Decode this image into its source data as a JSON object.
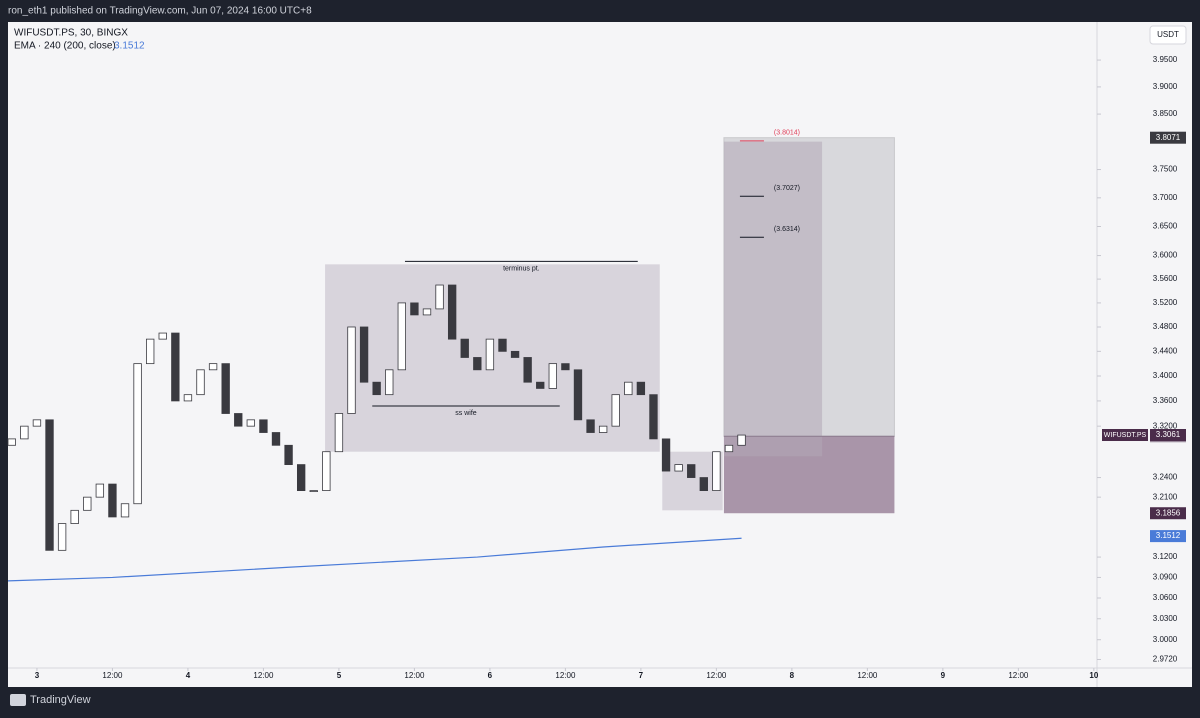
{
  "header": {
    "title": "ron_eth1 published on TradingView.com, Jun 07, 2024 16:00 UTC+8"
  },
  "footer": {
    "brand": "TradingView"
  },
  "chart_data": {
    "type": "candlestick",
    "symbol": "WIFUSDT.PS, 30, BINGX",
    "indicator": {
      "name": "EMA · 240 (200, close)",
      "value": 3.1512,
      "color": "#4a7bd8",
      "x": [
        -4.6,
        12,
        40,
        70,
        90,
        112
      ],
      "values": [
        3.085,
        3.09,
        3.105,
        3.12,
        3.135,
        3.148
      ]
    },
    "currency": "USDT",
    "log_scale": true,
    "xlim": [
      -4.6,
      168.5
    ],
    "ylim": [
      2.96,
      4.022
    ],
    "xticks": [
      {
        "value": 0,
        "label": "3"
      },
      {
        "value": 12,
        "label": "12:00"
      },
      {
        "value": 24,
        "label": "4"
      },
      {
        "value": 36,
        "label": "12:00"
      },
      {
        "value": 48,
        "label": "5"
      },
      {
        "value": 60,
        "label": "12:00"
      },
      {
        "value": 72,
        "label": "6"
      },
      {
        "value": 84,
        "label": "12:00"
      },
      {
        "value": 96,
        "label": "7"
      },
      {
        "value": 108,
        "label": "12:00"
      },
      {
        "value": 120,
        "label": "8"
      },
      {
        "value": 132,
        "label": "12:00"
      },
      {
        "value": 144,
        "label": "9"
      },
      {
        "value": 156,
        "label": "12:00"
      },
      {
        "value": 168,
        "label": "10"
      }
    ],
    "yticks": [
      {
        "value": 3.95,
        "label": "3.9500"
      },
      {
        "value": 3.9,
        "label": "3.9000"
      },
      {
        "value": 3.85,
        "label": "3.8500"
      },
      {
        "value": 3.75,
        "label": "3.7500"
      },
      {
        "value": 3.7,
        "label": "3.7000"
      },
      {
        "value": 3.65,
        "label": "3.6500"
      },
      {
        "value": 3.6,
        "label": "3.6000"
      },
      {
        "value": 3.56,
        "label": "3.5600"
      },
      {
        "value": 3.52,
        "label": "3.5200"
      },
      {
        "value": 3.48,
        "label": "3.4800"
      },
      {
        "value": 3.44,
        "label": "3.4400"
      },
      {
        "value": 3.4,
        "label": "3.4000"
      },
      {
        "value": 3.36,
        "label": "3.3600"
      },
      {
        "value": 3.32,
        "label": "3.3200"
      },
      {
        "value": 3.24,
        "label": "3.2400"
      },
      {
        "value": 3.21,
        "label": "3.2100"
      },
      {
        "value": 3.12,
        "label": "3.1200"
      },
      {
        "value": 3.09,
        "label": "3.0900"
      },
      {
        "value": 3.06,
        "label": "3.0600"
      },
      {
        "value": 3.03,
        "label": "3.0300"
      },
      {
        "value": 3,
        "label": "3.0000"
      },
      {
        "value": 2.972,
        "label": "2.9720"
      }
    ],
    "x": [
      -4,
      -2,
      0,
      2,
      4,
      6,
      8,
      10,
      12,
      14,
      16,
      18,
      20,
      22,
      24,
      26,
      28,
      30,
      32,
      34,
      36,
      38,
      40,
      42,
      44,
      46,
      48,
      50,
      52,
      54,
      56,
      58,
      60,
      62,
      64,
      66,
      68,
      70,
      72,
      74,
      76,
      78,
      80,
      82,
      84,
      86,
      88,
      90,
      92,
      94,
      96,
      98,
      100,
      102,
      104,
      106,
      108,
      110,
      112
    ],
    "open": [
      3.29,
      3.3,
      3.32,
      3.33,
      3.13,
      3.17,
      3.19,
      3.21,
      3.23,
      3.18,
      3.2,
      3.42,
      3.46,
      3.47,
      3.36,
      3.37,
      3.41,
      3.42,
      3.34,
      3.32,
      3.33,
      3.31,
      3.29,
      3.26,
      3.22,
      3.22,
      3.28,
      3.34,
      3.48,
      3.39,
      3.37,
      3.41,
      3.52,
      3.5,
      3.51,
      3.55,
      3.46,
      3.43,
      3.41,
      3.46,
      3.44,
      3.43,
      3.39,
      3.38,
      3.42,
      3.41,
      3.33,
      3.31,
      3.32,
      3.37,
      3.39,
      3.37,
      3.3,
      3.25,
      3.26,
      3.24,
      3.22,
      3.28,
      3.29
    ],
    "close": [
      3.3,
      3.32,
      3.33,
      3.13,
      3.17,
      3.19,
      3.21,
      3.23,
      3.18,
      3.2,
      3.42,
      3.46,
      3.47,
      3.36,
      3.37,
      3.41,
      3.42,
      3.34,
      3.32,
      3.33,
      3.31,
      3.29,
      3.26,
      3.22,
      3.22,
      3.28,
      3.34,
      3.48,
      3.39,
      3.37,
      3.41,
      3.52,
      3.5,
      3.51,
      3.55,
      3.46,
      3.43,
      3.41,
      3.46,
      3.44,
      3.43,
      3.39,
      3.38,
      3.42,
      3.41,
      3.33,
      3.31,
      3.32,
      3.37,
      3.39,
      3.37,
      3.3,
      3.25,
      3.26,
      3.24,
      3.22,
      3.28,
      3.29,
      3.306
    ],
    "zones": [
      {
        "from": 45.8,
        "to": 99,
        "top": 3.585,
        "bottom": 3.28
      },
      {
        "from": 99.4,
        "to": 109,
        "top": 3.28,
        "bottom": 3.19
      }
    ],
    "lines": [
      {
        "label": "terminus pt.",
        "from": 58.5,
        "to": 95.5,
        "value": 3.59
      },
      {
        "label": "ss wife",
        "from": 53.3,
        "to": 83.1,
        "value": 3.352
      }
    ],
    "position": {
      "from": 109.2,
      "to": 136.3,
      "entry": 3.3041,
      "stop": 3.1856,
      "target": 3.8071,
      "inner_to": 124.8,
      "inner_top": 3.8
    },
    "targets": [
      {
        "value": 3.8014,
        "label": "(3.8014)",
        "color": "#e0405a"
      },
      {
        "value": 3.7027,
        "label": "(3.7027)",
        "color": "#131722"
      },
      {
        "value": 3.6314,
        "label": "(3.6314)",
        "color": "#131722"
      }
    ],
    "last_price": {
      "name": "WIFUSDT.PS",
      "value": 3.3061
    }
  }
}
